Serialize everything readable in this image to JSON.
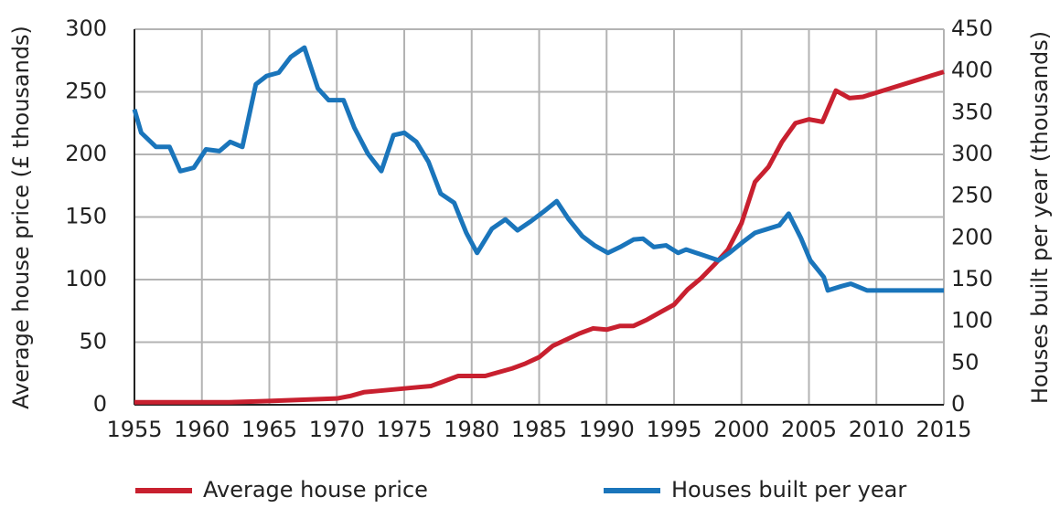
{
  "chart_data": {
    "type": "line",
    "ylabel": "Average house price (£ thousands)",
    "y2label": "Houses built per year (thousands)",
    "xlim": [
      1955,
      2015
    ],
    "xticks": [
      1955,
      1960,
      1965,
      1970,
      1975,
      1980,
      1985,
      1990,
      1995,
      2000,
      2005,
      2010,
      2015
    ],
    "ylim": [
      0,
      300
    ],
    "yticks": [
      0,
      50,
      100,
      150,
      200,
      250,
      300
    ],
    "y2lim": [
      0,
      450
    ],
    "y2ticks": [
      0,
      50,
      100,
      150,
      200,
      250,
      300,
      350,
      400,
      450
    ],
    "grid": true,
    "legend": "bottom",
    "series": [
      {
        "name": "Average house price",
        "color": "#c8202f",
        "x": [
          1955,
          1962,
          1965,
          1970,
          1971,
          1972,
          1973,
          1975,
          1976,
          1977,
          1978,
          1979,
          1981,
          1982,
          1983,
          1984,
          1985,
          1986,
          1987,
          1988,
          1989,
          1990,
          1991,
          1992,
          1993,
          1994,
          1995,
          1996,
          1997,
          1998,
          1999,
          2000,
          2001,
          2002,
          2003,
          2004,
          2005,
          2006,
          2007,
          2008,
          2009,
          2015
        ],
        "values": [
          2,
          2,
          3,
          5,
          7,
          10,
          11,
          13,
          14,
          15,
          19,
          23,
          23,
          26,
          29,
          33,
          38,
          47,
          52,
          57,
          61,
          60,
          63,
          63,
          68,
          74,
          80,
          92,
          101,
          112,
          124,
          145,
          178,
          190,
          210,
          225,
          228,
          226,
          251,
          245,
          246,
          266
        ]
      },
      {
        "name": "Houses built per year",
        "color": "#1a75bb",
        "axis": "y2",
        "x": [
          1955,
          1955.5,
          1956.6,
          1957.6,
          1958.4,
          1959.4,
          1960.3,
          1961.3,
          1962.1,
          1963,
          1964,
          1964.8,
          1965.7,
          1966.6,
          1967.6,
          1968.6,
          1969.4,
          1970.5,
          1971.3,
          1972.3,
          1973.3,
          1974.2,
          1975,
          1975.9,
          1976.8,
          1977.7,
          1978.7,
          1979.6,
          1980.4,
          1981.5,
          1982.5,
          1983.4,
          1984.4,
          1985.3,
          1986.3,
          1987.2,
          1988.2,
          1989.1,
          1990.1,
          1991,
          1992,
          1992.7,
          1993.5,
          1994.4,
          1995.3,
          1995.9,
          1997.2,
          1998.3,
          1999.1,
          2000.1,
          2001,
          2001.8,
          2002.8,
          2003.5,
          2004.4,
          2005.1,
          2006.1,
          2006.4,
          2007.4,
          2008.1,
          2009.3,
          2015
        ],
        "values": [
          354,
          326,
          309,
          309,
          280,
          284,
          306,
          304,
          315,
          309,
          384,
          394,
          398,
          417,
          428,
          379,
          365,
          365,
          332,
          301,
          280,
          323,
          326,
          315,
          291,
          253,
          242,
          206,
          182,
          211,
          222,
          209,
          220,
          231,
          244,
          222,
          202,
          191,
          182,
          189,
          198,
          199,
          189,
          191,
          182,
          186,
          179,
          173,
          182,
          195,
          206,
          210,
          215,
          229,
          200,
          173,
          153,
          137,
          142,
          145,
          137,
          137
        ]
      }
    ]
  }
}
